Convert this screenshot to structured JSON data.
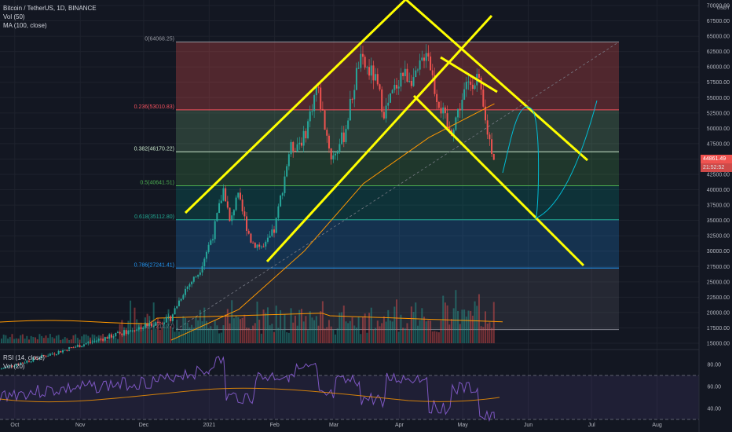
{
  "legend": {
    "symbol": "Bitcoin / TetherUS, 1D, BINANCE",
    "vol": "Vol (50)",
    "ma": "MA (100, close)",
    "rsi": "RSI (14, close)",
    "rsi_vol": "Vol (20)"
  },
  "price_axis": {
    "unit": "USDT",
    "labels": [
      "70000.00",
      "67500.00",
      "65000.00",
      "62500.00",
      "60000.00",
      "57500.00",
      "55000.00",
      "52500.00",
      "50000.00",
      "47500.00",
      "45000.00",
      "42500.00",
      "40000.00",
      "37500.00",
      "35000.00",
      "32500.00",
      "30000.00",
      "27500.00",
      "25000.00",
      "22500.00",
      "20000.00",
      "17500.00",
      "15000.00"
    ],
    "last_price": "44861.49",
    "countdown": "21:52:52"
  },
  "rsi_axis": {
    "labels": [
      "80.00",
      "60.00",
      "40.00"
    ]
  },
  "time_axis": {
    "labels": [
      "Oct",
      "Nov",
      "Dec",
      "2021",
      "Feb",
      "Mar",
      "Apr",
      "May",
      "Jun",
      "Jul",
      "Aug"
    ]
  },
  "fib_labels": [
    {
      "ratio": "0",
      "price": "64068.25",
      "color": "#9598a1"
    },
    {
      "ratio": "0.236",
      "price": "53010.83",
      "color": "#f7525f"
    },
    {
      "ratio": "0.382",
      "price": "46170.22",
      "color": "#c8e6c9"
    },
    {
      "ratio": "0.5",
      "price": "40641.51",
      "color": "#4caf50"
    },
    {
      "ratio": "0.618",
      "price": "35112.80",
      "color": "#22ab94"
    },
    {
      "ratio": "0.786",
      "price": "27241.41",
      "color": "#2196f3"
    },
    {
      "ratio": "1",
      "price": "17214.77",
      "color": "#787b86"
    }
  ],
  "colors": {
    "up": "#26a69a",
    "down": "#ef5350",
    "ma": "#ff9800",
    "annotation": "#ffff00",
    "projection": "#00bcd4",
    "rsi": "#7e57c2",
    "rsi_vol": "#ff9800",
    "background": "#131722"
  },
  "chart_data": {
    "type": "candlestick",
    "instrument": "Bitcoin / TetherUS",
    "interval": "1D",
    "exchange": "BINANCE",
    "price_range": [
      15000,
      70000
    ],
    "fibonacci": [
      {
        "level": 0,
        "price": 64068.25
      },
      {
        "level": 0.236,
        "price": 53010.83
      },
      {
        "level": 0.382,
        "price": 46170.22
      },
      {
        "level": 0.5,
        "price": 40641.51
      },
      {
        "level": 0.618,
        "price": 35112.8
      },
      {
        "level": 0.786,
        "price": 27241.41
      },
      {
        "level": 1,
        "price": 17214.77
      }
    ],
    "last_price": 44861.49,
    "rsi_range": [
      20,
      90
    ],
    "rsi_bands": [
      70,
      30
    ],
    "price_path": [
      [
        "2020-12-14",
        19300
      ],
      [
        "2020-12-20",
        23500
      ],
      [
        "2020-12-27",
        26500
      ],
      [
        "2021-01-03",
        33000
      ],
      [
        "2021-01-08",
        40500
      ],
      [
        "2021-01-11",
        34000
      ],
      [
        "2021-01-14",
        39500
      ],
      [
        "2021-01-21",
        31500
      ],
      [
        "2021-01-27",
        30500
      ],
      [
        "2021-02-01",
        33500
      ],
      [
        "2021-02-08",
        46500
      ],
      [
        "2021-02-15",
        48500
      ],
      [
        "2021-02-21",
        57000
      ],
      [
        "2021-02-28",
        45000
      ],
      [
        "2021-03-06",
        49000
      ],
      [
        "2021-03-13",
        61000
      ],
      [
        "2021-03-20",
        58500
      ],
      [
        "2021-03-25",
        52500
      ],
      [
        "2021-04-02",
        59000
      ],
      [
        "2021-04-09",
        58000
      ],
      [
        "2021-04-14",
        63500
      ],
      [
        "2021-04-18",
        56000
      ],
      [
        "2021-04-25",
        49000
      ],
      [
        "2021-05-03",
        57000
      ],
      [
        "2021-05-08",
        58500
      ],
      [
        "2021-05-12",
        50500
      ],
      [
        "2021-05-16",
        44861.49
      ]
    ],
    "ma100_path": [
      [
        "2020-12-14",
        15500
      ],
      [
        "2021-01-15",
        20500
      ],
      [
        "2021-02-15",
        30000
      ],
      [
        "2021-03-15",
        41000
      ],
      [
        "2021-04-15",
        48500
      ],
      [
        "2021-05-16",
        54000
      ]
    ],
    "rsi_path": [
      [
        "2020-12-14",
        66
      ],
      [
        "2021-01-01",
        74
      ],
      [
        "2021-01-08",
        83
      ],
      [
        "2021-01-22",
        50
      ],
      [
        "2021-02-08",
        70
      ],
      [
        "2021-02-21",
        76
      ],
      [
        "2021-03-01",
        51
      ],
      [
        "2021-03-13",
        64
      ],
      [
        "2021-03-25",
        48
      ],
      [
        "2021-04-14",
        68
      ],
      [
        "2021-04-25",
        41
      ],
      [
        "2021-05-08",
        58
      ],
      [
        "2021-05-16",
        31
      ]
    ]
  }
}
